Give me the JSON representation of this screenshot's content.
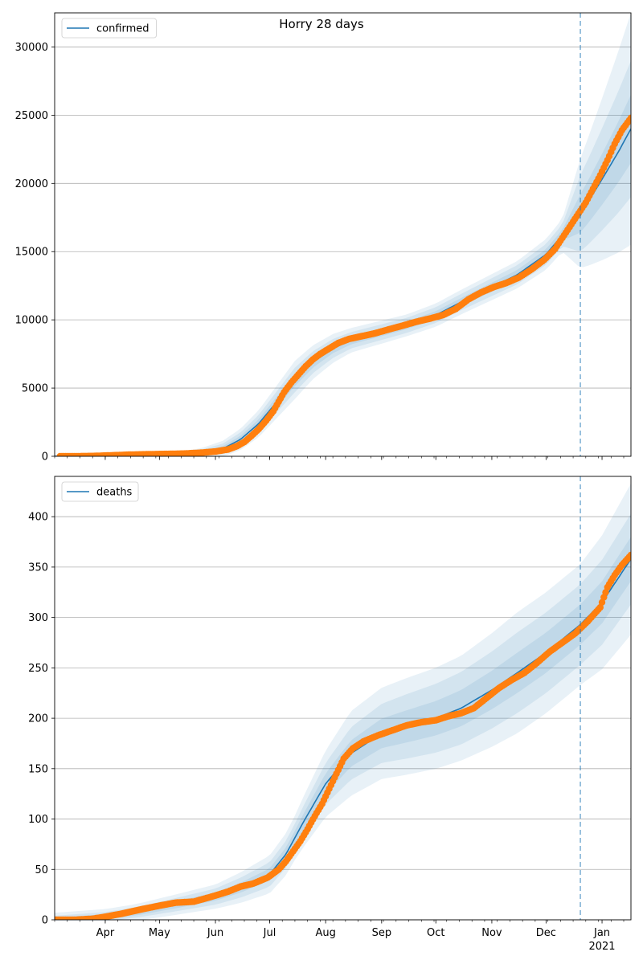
{
  "figure": {
    "title": "Horry 28 days"
  },
  "chart_data": [
    {
      "type": "line",
      "legend": [
        "confirmed"
      ],
      "legend_position": "top-left",
      "grid": "horizontal",
      "ylim": [
        0,
        32500
      ],
      "yticks": [
        0,
        5000,
        10000,
        15000,
        20000,
        25000,
        30000
      ],
      "xticks": [
        {
          "date": "2020-04-01",
          "label": "Apr"
        },
        {
          "date": "2020-05-01",
          "label": "May"
        },
        {
          "date": "2020-06-01",
          "label": "Jun"
        },
        {
          "date": "2020-07-01",
          "label": "Jul"
        },
        {
          "date": "2020-08-01",
          "label": "Aug"
        },
        {
          "date": "2020-09-01",
          "label": "Sep"
        },
        {
          "date": "2020-10-01",
          "label": "Oct"
        },
        {
          "date": "2020-11-01",
          "label": "Nov"
        },
        {
          "date": "2020-12-01",
          "label": "Dec"
        },
        {
          "date": "2021-01-01",
          "label": "Jan",
          "sublabel": "2021"
        }
      ],
      "xlim": [
        "2020-03-04",
        "2021-01-17"
      ],
      "forecast_start": "2020-12-20",
      "model": {
        "name": "confirmed",
        "color": "#1f77b4",
        "points": [
          [
            "2020-03-04",
            0
          ],
          [
            "2020-04-01",
            40
          ],
          [
            "2020-05-01",
            150
          ],
          [
            "2020-05-25",
            280
          ],
          [
            "2020-06-05",
            550
          ],
          [
            "2020-06-15",
            1250
          ],
          [
            "2020-06-25",
            2400
          ],
          [
            "2020-07-05",
            4000
          ],
          [
            "2020-07-15",
            5600
          ],
          [
            "2020-07-25",
            6900
          ],
          [
            "2020-08-05",
            7900
          ],
          [
            "2020-08-15",
            8500
          ],
          [
            "2020-09-01",
            9100
          ],
          [
            "2020-09-15",
            9600
          ],
          [
            "2020-10-01",
            10350
          ],
          [
            "2020-10-15",
            11300
          ],
          [
            "2020-11-01",
            12400
          ],
          [
            "2020-11-15",
            13300
          ],
          [
            "2020-12-01",
            14800
          ],
          [
            "2020-12-10",
            16200
          ],
          [
            "2020-12-20",
            17800
          ],
          [
            "2020-12-25",
            18800
          ],
          [
            "2021-01-01",
            20300
          ],
          [
            "2021-01-10",
            22300
          ],
          [
            "2021-01-17",
            24000
          ]
        ],
        "bands": [
          {
            "spread": [
              100,
              150,
              1400,
              900,
              800,
              900,
              1000,
              1200,
              4000,
              8500
            ]
          },
          {
            "spread": [
              60,
              100,
              900,
              600,
              550,
              600,
              700,
              800,
              2800,
              5000
            ]
          },
          {
            "spread": [
              30,
              50,
              450,
              300,
              280,
              300,
              350,
              400,
              1400,
              2500
            ]
          }
        ],
        "band_dates": [
          "2020-03-04",
          "2020-05-15",
          "2020-07-15",
          "2020-08-15",
          "2020-09-15",
          "2020-10-15",
          "2020-11-15",
          "2020-12-10",
          "2020-12-20",
          "2021-01-17"
        ]
      },
      "observed": {
        "name": "observed",
        "color": "#ff7f0e",
        "points": [
          [
            "2020-03-07",
            0
          ],
          [
            "2020-03-15",
            2
          ],
          [
            "2020-03-25",
            20
          ],
          [
            "2020-04-05",
            70
          ],
          [
            "2020-04-15",
            120
          ],
          [
            "2020-04-25",
            150
          ],
          [
            "2020-05-05",
            170
          ],
          [
            "2020-05-15",
            200
          ],
          [
            "2020-05-25",
            270
          ],
          [
            "2020-06-01",
            350
          ],
          [
            "2020-06-08",
            500
          ],
          [
            "2020-06-13",
            750
          ],
          [
            "2020-06-17",
            1050
          ],
          [
            "2020-06-21",
            1500
          ],
          [
            "2020-06-25",
            2000
          ],
          [
            "2020-06-29",
            2600
          ],
          [
            "2020-07-03",
            3300
          ],
          [
            "2020-07-06",
            4000
          ],
          [
            "2020-07-09",
            4700
          ],
          [
            "2020-07-13",
            5400
          ],
          [
            "2020-07-17",
            6000
          ],
          [
            "2020-07-21",
            6600
          ],
          [
            "2020-07-25",
            7100
          ],
          [
            "2020-07-29",
            7500
          ],
          [
            "2020-08-03",
            7900
          ],
          [
            "2020-08-08",
            8300
          ],
          [
            "2020-08-14",
            8600
          ],
          [
            "2020-08-21",
            8800
          ],
          [
            "2020-08-28",
            9000
          ],
          [
            "2020-09-05",
            9300
          ],
          [
            "2020-09-12",
            9550
          ],
          [
            "2020-09-20",
            9850
          ],
          [
            "2020-09-28",
            10100
          ],
          [
            "2020-10-05",
            10350
          ],
          [
            "2020-10-12",
            10800
          ],
          [
            "2020-10-19",
            11500
          ],
          [
            "2020-10-26",
            12000
          ],
          [
            "2020-11-02",
            12400
          ],
          [
            "2020-11-09",
            12700
          ],
          [
            "2020-11-16",
            13100
          ],
          [
            "2020-11-23",
            13700
          ],
          [
            "2020-11-30",
            14400
          ],
          [
            "2020-12-06",
            15200
          ],
          [
            "2020-12-11",
            16200
          ],
          [
            "2020-12-15",
            17000
          ],
          [
            "2020-12-19",
            17800
          ],
          [
            "2020-12-23",
            18600
          ],
          [
            "2020-12-27",
            19600
          ],
          [
            "2020-12-31",
            20600
          ],
          [
            "2021-01-04",
            21700
          ],
          [
            "2021-01-08",
            22900
          ],
          [
            "2021-01-12",
            23900
          ],
          [
            "2021-01-17",
            24800
          ]
        ]
      }
    },
    {
      "type": "line",
      "legend": [
        "deaths"
      ],
      "legend_position": "top-left",
      "grid": "horizontal",
      "ylim": [
        0,
        440
      ],
      "yticks": [
        0,
        50,
        100,
        150,
        200,
        250,
        300,
        350,
        400
      ],
      "xticks": [
        {
          "date": "2020-04-01",
          "label": "Apr"
        },
        {
          "date": "2020-05-01",
          "label": "May"
        },
        {
          "date": "2020-06-01",
          "label": "Jun"
        },
        {
          "date": "2020-07-01",
          "label": "Jul"
        },
        {
          "date": "2020-08-01",
          "label": "Aug"
        },
        {
          "date": "2020-09-01",
          "label": "Sep"
        },
        {
          "date": "2020-10-01",
          "label": "Oct"
        },
        {
          "date": "2020-11-01",
          "label": "Nov"
        },
        {
          "date": "2020-12-01",
          "label": "Dec"
        },
        {
          "date": "2021-01-01",
          "label": "Jan",
          "sublabel": "2021"
        }
      ],
      "xlim": [
        "2020-03-04",
        "2021-01-17"
      ],
      "forecast_start": "2020-12-20",
      "model": {
        "name": "deaths",
        "color": "#1f77b4",
        "points": [
          [
            "2020-03-04",
            0
          ],
          [
            "2020-04-01",
            3
          ],
          [
            "2020-04-20",
            8
          ],
          [
            "2020-05-10",
            15
          ],
          [
            "2020-06-01",
            23
          ],
          [
            "2020-06-15",
            32
          ],
          [
            "2020-07-01",
            45
          ],
          [
            "2020-07-10",
            65
          ],
          [
            "2020-07-20",
            98
          ],
          [
            "2020-08-01",
            135
          ],
          [
            "2020-08-15",
            165
          ],
          [
            "2020-09-01",
            185
          ],
          [
            "2020-09-15",
            192
          ],
          [
            "2020-10-01",
            200
          ],
          [
            "2020-10-15",
            210
          ],
          [
            "2020-11-01",
            228
          ],
          [
            "2020-11-15",
            245
          ],
          [
            "2020-12-01",
            265
          ],
          [
            "2020-12-20",
            293
          ],
          [
            "2021-01-01",
            315
          ],
          [
            "2021-01-17",
            358
          ]
        ],
        "bands": [
          {
            "spread": [
              7,
              8,
              12,
              22,
              42,
              48,
              52,
              60,
              60,
              75
            ]
          },
          {
            "spread": [
              4,
              5,
              8,
              14,
              26,
              32,
              36,
              40,
              40,
              45
            ]
          },
          {
            "spread": [
              2,
              3,
              4,
              7,
              13,
              16,
              18,
              20,
              20,
              22
            ]
          }
        ],
        "band_dates": [
          "2020-03-04",
          "2020-04-15",
          "2020-06-01",
          "2020-07-15",
          "2020-08-15",
          "2020-09-15",
          "2020-10-15",
          "2020-11-15",
          "2020-12-20",
          "2021-01-17"
        ]
      },
      "observed": {
        "name": "observed",
        "color": "#ff7f0e",
        "points": [
          [
            "2020-03-04",
            0
          ],
          [
            "2020-03-15",
            0
          ],
          [
            "2020-03-25",
            1
          ],
          [
            "2020-04-01",
            3
          ],
          [
            "2020-04-10",
            6
          ],
          [
            "2020-04-20",
            10
          ],
          [
            "2020-05-01",
            14
          ],
          [
            "2020-05-10",
            17
          ],
          [
            "2020-05-20",
            18
          ],
          [
            "2020-05-30",
            23
          ],
          [
            "2020-06-08",
            28
          ],
          [
            "2020-06-15",
            33
          ],
          [
            "2020-06-22",
            36
          ],
          [
            "2020-06-30",
            42
          ],
          [
            "2020-07-06",
            50
          ],
          [
            "2020-07-10",
            58
          ],
          [
            "2020-07-14",
            68
          ],
          [
            "2020-07-18",
            78
          ],
          [
            "2020-07-22",
            90
          ],
          [
            "2020-07-26",
            103
          ],
          [
            "2020-07-30",
            115
          ],
          [
            "2020-08-03",
            130
          ],
          [
            "2020-08-07",
            145
          ],
          [
            "2020-08-11",
            160
          ],
          [
            "2020-08-16",
            170
          ],
          [
            "2020-08-22",
            177
          ],
          [
            "2020-08-30",
            183
          ],
          [
            "2020-09-07",
            188
          ],
          [
            "2020-09-15",
            193
          ],
          [
            "2020-09-23",
            196
          ],
          [
            "2020-10-01",
            198
          ],
          [
            "2020-10-08",
            202
          ],
          [
            "2020-10-15",
            205
          ],
          [
            "2020-10-22",
            210
          ],
          [
            "2020-10-29",
            220
          ],
          [
            "2020-11-05",
            230
          ],
          [
            "2020-11-12",
            238
          ],
          [
            "2020-11-19",
            245
          ],
          [
            "2020-11-26",
            255
          ],
          [
            "2020-12-03",
            266
          ],
          [
            "2020-12-10",
            275
          ],
          [
            "2020-12-17",
            284
          ],
          [
            "2020-12-24",
            296
          ],
          [
            "2020-12-31",
            310
          ],
          [
            "2021-01-04",
            330
          ],
          [
            "2021-01-08",
            342
          ],
          [
            "2021-01-12",
            352
          ],
          [
            "2021-01-17",
            362
          ]
        ]
      }
    }
  ]
}
